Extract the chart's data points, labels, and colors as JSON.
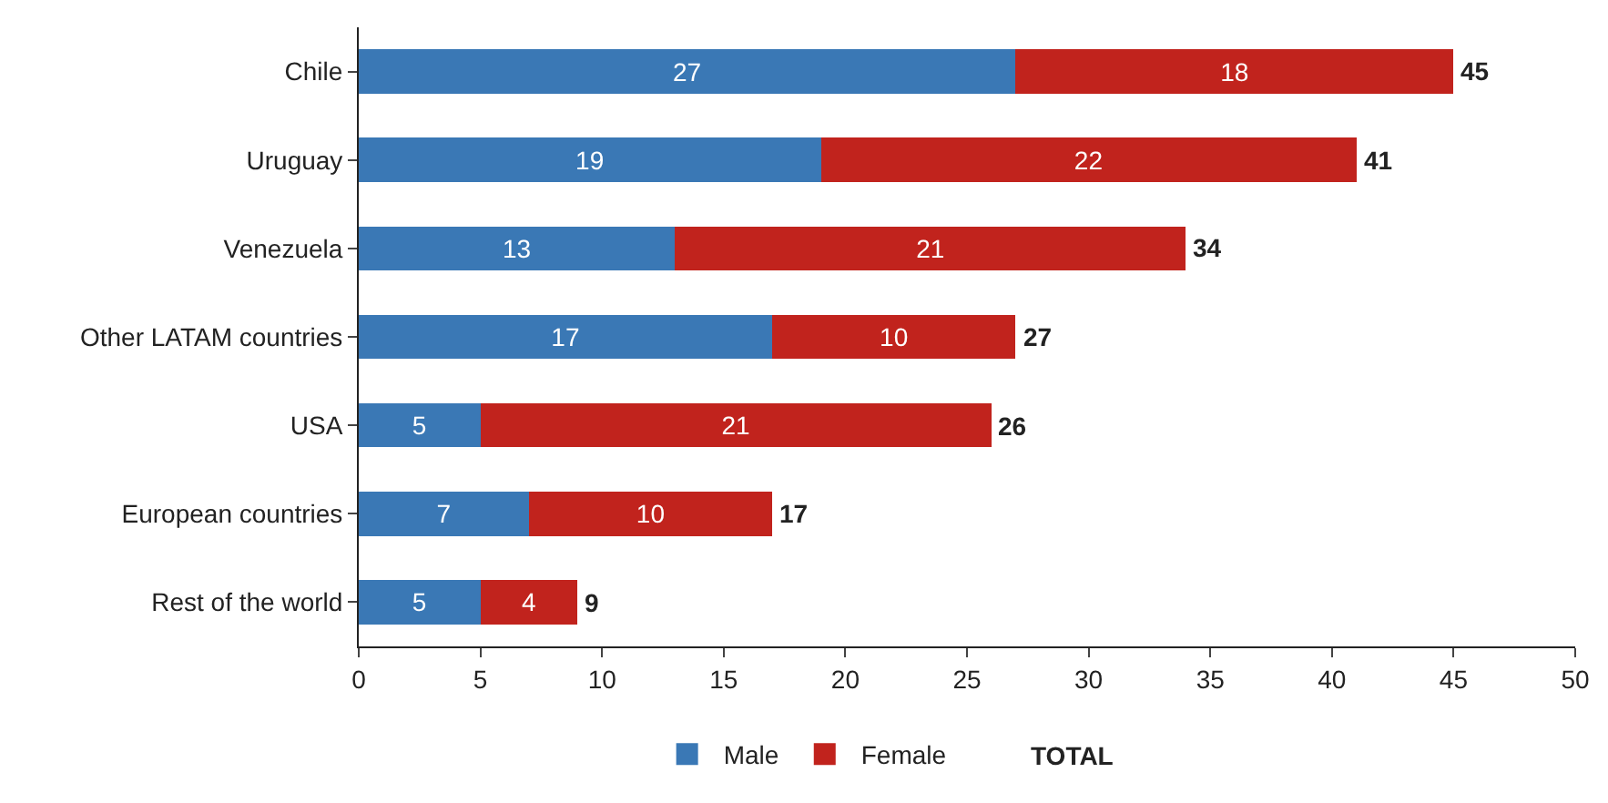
{
  "chart_data": {
    "type": "bar",
    "orientation": "horizontal",
    "stacked": true,
    "categories": [
      "Chile",
      "Uruguay",
      "Venezuela",
      "Other LATAM countries",
      "USA",
      "European countries",
      "Rest of the world"
    ],
    "series": [
      {
        "name": "Male",
        "color": "#3a78b5",
        "values": [
          27,
          19,
          13,
          17,
          5,
          7,
          5
        ]
      },
      {
        "name": "Female",
        "color": "#c1231d",
        "values": [
          18,
          22,
          21,
          10,
          21,
          10,
          4
        ]
      }
    ],
    "data_labels": true,
    "totals": [
      "45",
      "41",
      "34",
      "27",
      "26",
      "17",
      "9"
    ],
    "annotations": [
      "TOTAL"
    ],
    "xlim": [
      0,
      50
    ],
    "xticks": [
      0,
      5,
      10,
      15,
      20,
      25,
      30,
      35,
      40,
      45,
      50
    ],
    "legend": "bottom"
  }
}
